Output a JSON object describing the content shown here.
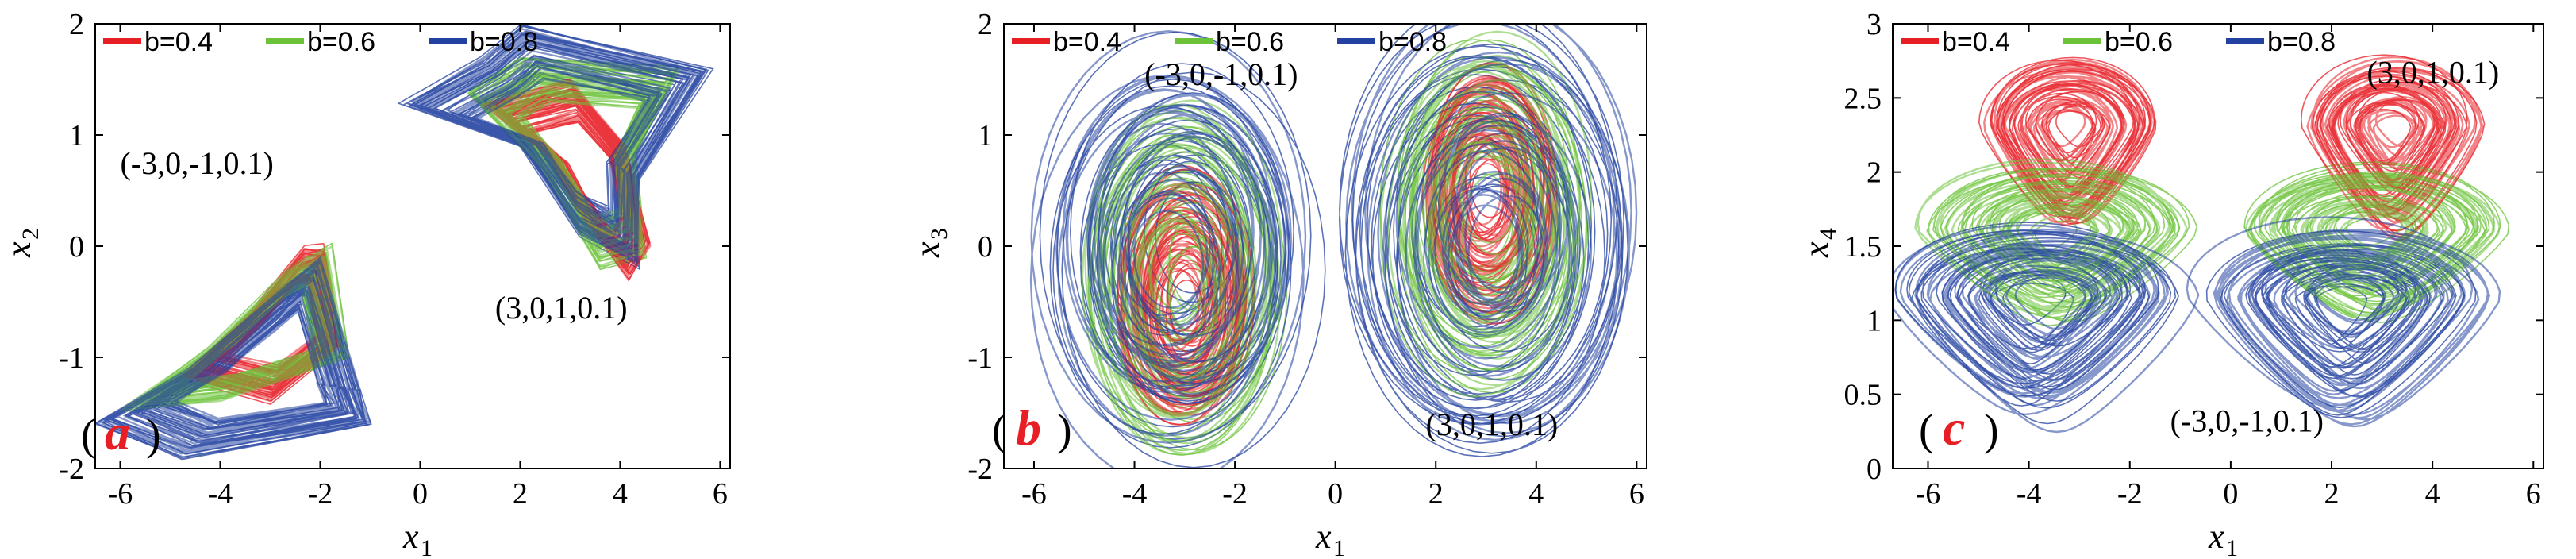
{
  "chart_data": [
    {
      "type": "line",
      "panel_label": "a",
      "xlabel": "x",
      "xlabel_sub": "1",
      "ylabel": "x",
      "ylabel_sub": "2",
      "xlim": [
        -6.5,
        6.2
      ],
      "ylim": [
        -2,
        2
      ],
      "xticks": [
        "-6",
        "-4",
        "-2",
        "0",
        "2",
        "4",
        "6"
      ],
      "xtick_values": [
        -6,
        -4,
        -2,
        0,
        2,
        4,
        6
      ],
      "yticks": [
        "-2",
        "-1",
        "0",
        "1",
        "2"
      ],
      "ytick_values": [
        -2,
        -1,
        0,
        1,
        2
      ],
      "legend": [
        "b=0.4",
        "b=0.6",
        "b=0.8"
      ],
      "legend_placement": "top-left",
      "annotations": [
        {
          "text": "(-3,0,-1,0.1)",
          "x": -6.0,
          "y": 0.65
        },
        {
          "text": "(3,0,1,0.1)",
          "x": 1.5,
          "y": -0.65
        }
      ],
      "series": [
        {
          "name": "b=0.4",
          "color": "#e81e25",
          "attractors": [
            {
              "points": [
                [
                  4.1,
                  0.9
                ],
                [
                  4.6,
                  0.0
                ],
                [
                  4.2,
                  -0.3
                ],
                [
                  3.2,
                  0.3
                ],
                [
                  2.6,
                  0.8
                ],
                [
                  1.3,
                  1.3
                ],
                [
                  3.0,
                  1.5
                ],
                [
                  4.1,
                  0.9
                ]
              ]
            },
            {
              "points": [
                [
                  -1.6,
                  -0.9
                ],
                [
                  -1.9,
                  0.0
                ],
                [
                  -2.3,
                  0.0
                ],
                [
                  -3.4,
                  -0.6
                ],
                [
                  -4.8,
                  -1.2
                ],
                [
                  -3.0,
                  -1.4
                ],
                [
                  -1.6,
                  -0.9
                ]
              ]
            }
          ]
        },
        {
          "name": "b=0.6",
          "color": "#6cc33a",
          "attractors": [
            {
              "points": [
                [
                  4.3,
                  0.8
                ],
                [
                  4.5,
                  -0.1
                ],
                [
                  3.6,
                  -0.2
                ],
                [
                  2.4,
                  0.7
                ],
                [
                  0.9,
                  1.4
                ],
                [
                  2.0,
                  1.7
                ],
                [
                  5.2,
                  1.6
                ],
                [
                  4.3,
                  0.8
                ]
              ]
            },
            {
              "points": [
                [
                  -1.4,
                  -1.0
                ],
                [
                  -1.8,
                  0.0
                ],
                [
                  -2.6,
                  -0.2
                ],
                [
                  -4.2,
                  -0.9
                ],
                [
                  -6.0,
                  -1.5
                ],
                [
                  -4.0,
                  -1.4
                ],
                [
                  -1.4,
                  -1.0
                ]
              ]
            }
          ]
        },
        {
          "name": "b=0.8",
          "color": "#2341a0",
          "attractors": [
            {
              "points": [
                [
                  4.4,
                  0.6
                ],
                [
                  4.4,
                  -0.2
                ],
                [
                  3.2,
                  0.1
                ],
                [
                  2.0,
                  0.9
                ],
                [
                  -0.4,
                  1.3
                ],
                [
                  1.2,
                  1.7
                ],
                [
                  2.0,
                  2.0
                ],
                [
                  5.8,
                  1.6
                ],
                [
                  4.4,
                  0.6
                ]
              ]
            },
            {
              "points": [
                [
                  -1.2,
                  -1.3
                ],
                [
                  -2.0,
                  -0.1
                ],
                [
                  -2.8,
                  -0.4
                ],
                [
                  -4.6,
                  -1.1
                ],
                [
                  -6.5,
                  -1.6
                ],
                [
                  -4.8,
                  -1.9
                ],
                [
                  -1.0,
                  -1.6
                ],
                [
                  -1.2,
                  -1.3
                ]
              ]
            }
          ]
        }
      ]
    },
    {
      "type": "line",
      "panel_label": "b",
      "xlabel": "x",
      "xlabel_sub": "1",
      "ylabel": "x",
      "ylabel_sub": "3",
      "xlim": [
        -6.6,
        6.2
      ],
      "ylim": [
        -2,
        2
      ],
      "xticks": [
        "-6",
        "-4",
        "-2",
        "0",
        "2",
        "4",
        "6"
      ],
      "xtick_values": [
        -6,
        -4,
        -2,
        0,
        2,
        4,
        6
      ],
      "yticks": [
        "-2",
        "-1",
        "0",
        "1",
        "2"
      ],
      "ytick_values": [
        -2,
        -1,
        0,
        1,
        2
      ],
      "legend": [
        "b=0.4",
        "b=0.6",
        "b=0.8"
      ],
      "legend_placement": "top-left",
      "annotations": [
        {
          "text": "(-3,0,-1,0.1)",
          "x": -3.8,
          "y": 1.45
        },
        {
          "text": "(3,0,1,0.1)",
          "x": 1.8,
          "y": -1.7
        }
      ],
      "series": [
        {
          "name": "b=0.4",
          "color": "#e81e25",
          "attractors": [
            {
              "center": [
                3.0,
                0.5
              ],
              "rx": 1.3,
              "ry": 1.1
            },
            {
              "center": [
                -3.0,
                -0.5
              ],
              "rx": 1.3,
              "ry": 1.1
            }
          ]
        },
        {
          "name": "b=0.6",
          "color": "#6cc33a",
          "attractors": [
            {
              "center": [
                3.0,
                0.3
              ],
              "rx": 1.9,
              "ry": 1.5
            },
            {
              "center": [
                -3.0,
                -0.3
              ],
              "rx": 1.9,
              "ry": 1.5
            }
          ]
        },
        {
          "name": "b=0.8",
          "color": "#2341a0",
          "attractors": [
            {
              "center": [
                3.1,
                0.1
              ],
              "rx": 2.8,
              "ry": 1.9
            },
            {
              "center": [
                -3.1,
                -0.1
              ],
              "rx": 2.8,
              "ry": 1.9
            }
          ]
        }
      ]
    },
    {
      "type": "line",
      "panel_label": "c",
      "xlabel": "x",
      "xlabel_sub": "1",
      "ylabel": "x",
      "ylabel_sub": "4",
      "xlim": [
        -6.7,
        6.2
      ],
      "ylim": [
        0,
        3
      ],
      "xticks": [
        "-6",
        "-4",
        "-2",
        "0",
        "2",
        "4",
        "6"
      ],
      "xtick_values": [
        -6,
        -4,
        -2,
        0,
        2,
        4,
        6
      ],
      "yticks": [
        "0",
        "0.5",
        "1",
        "1.5",
        "2",
        "2.5",
        "3"
      ],
      "ytick_values": [
        0,
        0.5,
        1,
        1.5,
        2,
        2.5,
        3
      ],
      "legend": [
        "b=0.4",
        "b=0.6",
        "b=0.8"
      ],
      "legend_placement": "top-left",
      "annotations": [
        {
          "text": "(3,0,1,0.1)",
          "x": 2.7,
          "y": 2.6
        },
        {
          "text": "(-3,0,-1,0.1)",
          "x": -1.2,
          "y": 0.25
        }
      ],
      "series": [
        {
          "name": "b=0.4",
          "color": "#e81e25",
          "attractors": [
            {
              "center": [
                -3.2,
                2.3
              ],
              "rx": 1.7,
              "ry": 0.45,
              "y_low": 1.6
            },
            {
              "center": [
                3.2,
                2.3
              ],
              "rx": 1.7,
              "ry": 0.45,
              "y_low": 1.6
            }
          ]
        },
        {
          "name": "b=0.6",
          "color": "#6cc33a",
          "attractors": [
            {
              "center": [
                -3.4,
                1.6
              ],
              "rx": 2.6,
              "ry": 0.45,
              "y_low": 1.0
            },
            {
              "center": [
                2.8,
                1.6
              ],
              "rx": 2.6,
              "ry": 0.45,
              "y_low": 1.0
            }
          ]
        },
        {
          "name": "b=0.8",
          "color": "#2341a0",
          "attractors": [
            {
              "center": [
                -3.8,
                1.15
              ],
              "rx": 2.9,
              "ry": 0.5,
              "y_low": 0.3
            },
            {
              "center": [
                2.3,
                1.15
              ],
              "rx": 2.9,
              "ry": 0.5,
              "y_low": 0.3
            }
          ]
        }
      ]
    }
  ]
}
